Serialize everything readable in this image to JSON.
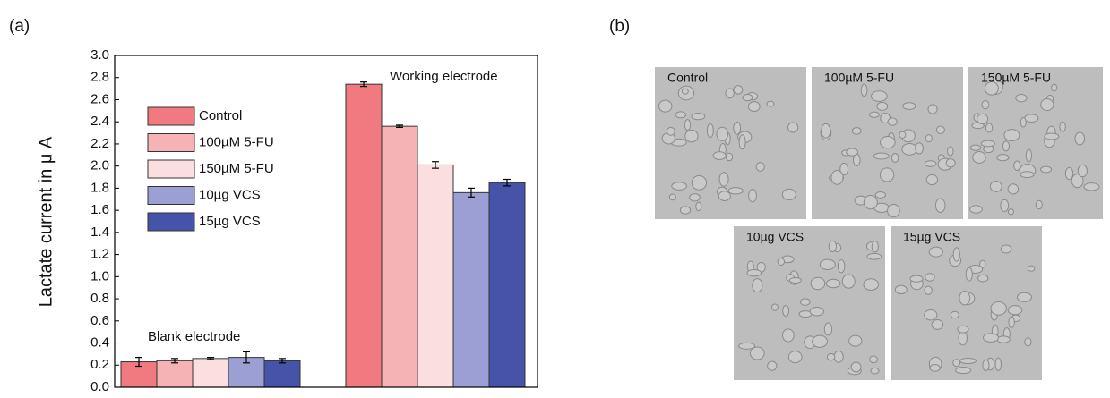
{
  "chart_data": {
    "type": "bar",
    "panel_label": "(a)",
    "ylabel": "Lactate current in μ A",
    "categories": [
      "Blank electrode",
      "Working electrode"
    ],
    "series": [
      {
        "name": "Control",
        "color": "#f07a80",
        "values": [
          0.23,
          2.74
        ],
        "errors": [
          0.04,
          0.02
        ]
      },
      {
        "name": "100µM 5-FU",
        "color": "#f6b3b5",
        "values": [
          0.24,
          2.36
        ],
        "errors": [
          0.02,
          0.01
        ]
      },
      {
        "name": "150µM 5-FU",
        "color": "#fbdedf",
        "values": [
          0.26,
          2.01
        ],
        "errors": [
          0.01,
          0.03
        ]
      },
      {
        "name": "10µg VCS",
        "color": "#9c9fd4",
        "values": [
          0.27,
          1.76
        ],
        "errors": [
          0.05,
          0.04
        ]
      },
      {
        "name": "15µg VCS",
        "color": "#4553a8",
        "values": [
          0.24,
          1.85
        ],
        "errors": [
          0.02,
          0.03
        ]
      }
    ],
    "ylim": [
      0,
      3.0
    ],
    "yticks": [
      {
        "value": 0,
        "label": "0.0"
      },
      0.2,
      0.4,
      0.6,
      0.8,
      {
        "value": 1,
        "label": "1.0"
      },
      1.2,
      1.4,
      1.6,
      1.8,
      {
        "value": 2,
        "label": "2.0"
      },
      2.2,
      2.4,
      2.6,
      2.8,
      {
        "value": 3,
        "label": "3.0"
      }
    ],
    "legend": "upper left"
  },
  "micrographs": {
    "panel_label": "(b)",
    "images": [
      "Control",
      "100µM 5-FU",
      "150µM 5-FU",
      "10µg VCS",
      "15µg VCS"
    ]
  }
}
